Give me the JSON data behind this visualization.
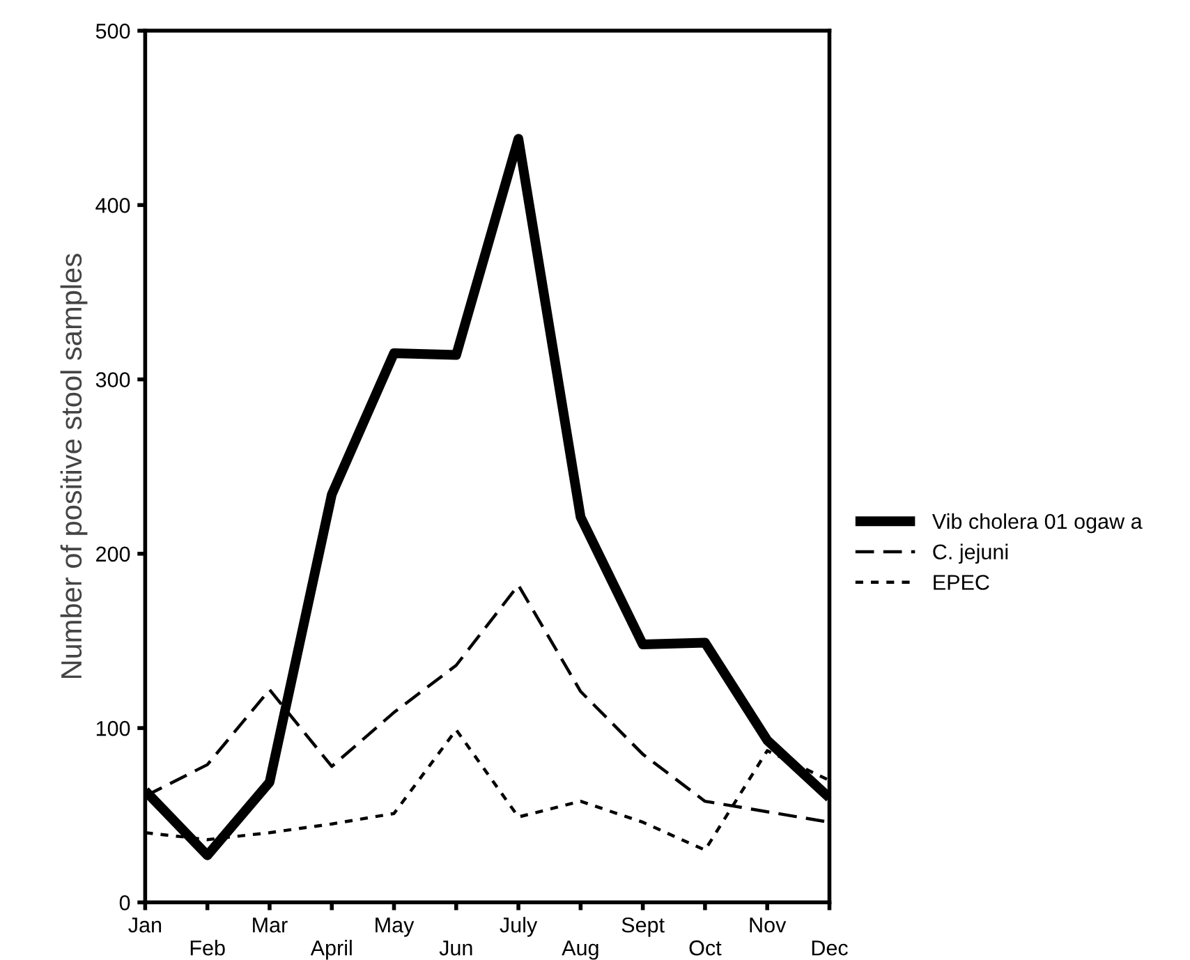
{
  "chart_data": {
    "type": "line",
    "ylabel": "Number of positive stool samples",
    "categories": [
      "Jan",
      "Feb",
      "Mar",
      "April",
      "May",
      "Jun",
      "July",
      "Aug",
      "Sept",
      "Oct",
      "Nov",
      "Dec"
    ],
    "ylim": [
      0,
      500
    ],
    "yticks": [
      0,
      100,
      200,
      300,
      400,
      500
    ],
    "grid": false,
    "legend": "right",
    "marker": "none",
    "series": [
      {
        "name": "Vib cholera 01 ogaw a",
        "color": "#000000",
        "line_style": "solid",
        "values": [
          64,
          27,
          69,
          234,
          315,
          314,
          438,
          221,
          148,
          149,
          93,
          60
        ]
      },
      {
        "name": "C. jejuni",
        "color": "#000000",
        "line_style": "dashed",
        "values": [
          61,
          79,
          122,
          78,
          109,
          136,
          182,
          121,
          85,
          58,
          52,
          46
        ]
      },
      {
        "name": "EPEC",
        "color": "#000000",
        "line_style": "dotted",
        "values": [
          40,
          36,
          40,
          45,
          51,
          99,
          49,
          58,
          46,
          30,
          87,
          70
        ]
      }
    ]
  }
}
